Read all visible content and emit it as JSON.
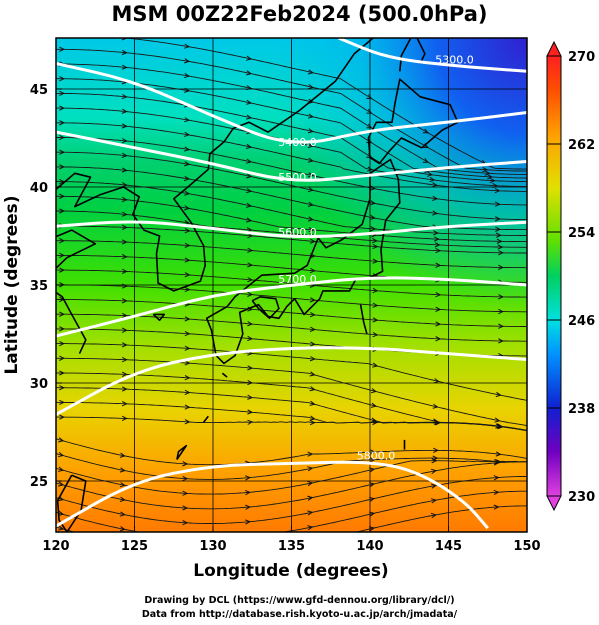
{
  "title": "MSM 00Z22Feb2024 (500.0hPa)",
  "credits": {
    "line1": "Drawing by DCL (https://www.gfd-dennou.org/library/dcl/)",
    "line2": "Data from http://database.rish.kyoto-u.ac.jp/arch/jmadata/"
  },
  "chart_data": {
    "type": "heatmap",
    "title": "MSM 00Z22Feb2024 (500.0hPa)",
    "xlabel": "Longitude (degrees)",
    "ylabel": "Latitude  (degrees)",
    "xlim": [
      120,
      150
    ],
    "ylim": [
      22.4,
      47.6
    ],
    "xticks": [
      "120",
      "125",
      "130",
      "135",
      "140",
      "145",
      "150"
    ],
    "yticks": [
      "25",
      "30",
      "35",
      "40",
      "45"
    ],
    "grid": true,
    "colorbar": {
      "range": [
        230,
        270
      ],
      "ticks": [
        "230",
        "238",
        "246",
        "254",
        "262",
        "270"
      ],
      "colormap": [
        "#e040e0",
        "#7000c0",
        "#1020d0",
        "#0090ff",
        "#00e0e0",
        "#00d060",
        "#60e000",
        "#e0e000",
        "#ffa000",
        "#ff5000",
        "#ff2020"
      ]
    },
    "contours": [
      {
        "label": "5400.0",
        "points": [
          [
            120,
            46.3
          ],
          [
            125,
            45.4
          ],
          [
            130,
            43.6
          ],
          [
            135,
            42.0
          ],
          [
            140,
            42.9
          ],
          [
            145,
            43.3
          ],
          [
            150,
            43.8
          ]
        ]
      },
      {
        "label": "5500.0",
        "points": [
          [
            120,
            42.8
          ],
          [
            125,
            42.0
          ],
          [
            130,
            41.2
          ],
          [
            135,
            40.2
          ],
          [
            140,
            40.6
          ],
          [
            145,
            41.0
          ],
          [
            150,
            41.3
          ]
        ]
      },
      {
        "label": "5600.0",
        "points": [
          [
            120,
            38.0
          ],
          [
            125,
            38.3
          ],
          [
            130,
            37.9
          ],
          [
            135,
            37.4
          ],
          [
            140,
            37.6
          ],
          [
            145,
            38.0
          ],
          [
            150,
            38.2
          ]
        ]
      },
      {
        "label": "5700.0",
        "points": [
          [
            120,
            32.4
          ],
          [
            125,
            33.4
          ],
          [
            130,
            34.5
          ],
          [
            135,
            35.0
          ],
          [
            140,
            35.4
          ],
          [
            145,
            35.3
          ],
          [
            150,
            35.0
          ]
        ]
      },
      {
        "label": "",
        "points": [
          [
            120,
            28.4
          ],
          [
            125,
            30.6
          ],
          [
            130,
            31.5
          ],
          [
            135,
            31.8
          ],
          [
            140,
            31.8
          ],
          [
            145,
            31.5
          ],
          [
            150,
            31.2
          ]
        ]
      },
      {
        "label": "5800.0",
        "points": [
          [
            120,
            22.7
          ],
          [
            125,
            25.0
          ],
          [
            130,
            25.8
          ],
          [
            135,
            25.9
          ],
          [
            140,
            26.0
          ],
          [
            143,
            25.5
          ],
          [
            146,
            24.0
          ],
          [
            147.5,
            22.6
          ]
        ]
      }
    ],
    "upper_right_contour": {
      "label": "5300.0",
      "points": [
        [
          138,
          47.6
        ],
        [
          141,
          46.6
        ],
        [
          145,
          46.2
        ],
        [
          150,
          45.9
        ]
      ]
    }
  }
}
